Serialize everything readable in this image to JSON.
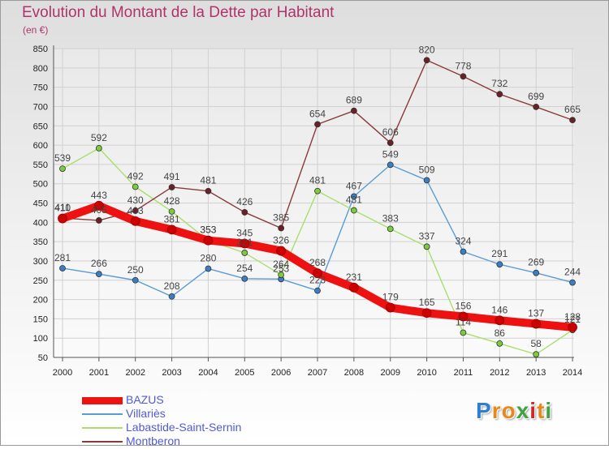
{
  "title": "Evolution du Montant de la Dette par Habitant",
  "unit_label": "(en €)",
  "logo": {
    "letters": [
      "P",
      "r",
      "o",
      "x",
      "i",
      "t",
      "i"
    ],
    "colors": [
      "#2d7fd4",
      "#e8871c",
      "#e8871c",
      "#3fa33f",
      "#cc2a2a",
      "#e8871c",
      "#3fa33f"
    ]
  },
  "chart_data": {
    "type": "line",
    "title": "Evolution du Montant de la Dette par Habitant",
    "ylabel": "(en €)",
    "xlabel": "",
    "categories": [
      "2000",
      "2001",
      "2002",
      "2003",
      "2004",
      "2005",
      "2006",
      "2007",
      "2008",
      "2009",
      "2010",
      "2011",
      "2012",
      "2013",
      "2014"
    ],
    "ylim": [
      50,
      850
    ],
    "yticks": [
      50,
      100,
      150,
      200,
      250,
      300,
      350,
      400,
      450,
      500,
      550,
      600,
      650,
      700,
      750,
      800,
      850
    ],
    "grid": true,
    "legend_position": "bottom-left",
    "series": [
      {
        "name": "Villariès",
        "color": "#5b9bd5",
        "dot": "#3a7fc4",
        "values": [
          281,
          266,
          250,
          208,
          280,
          254,
          253,
          223,
          467,
          549,
          509,
          324,
          291,
          269,
          244
        ]
      },
      {
        "name": "Labastide-Saint-Sernin",
        "color": "#a9df6f",
        "dot": "#7ccc3c",
        "values": [
          539,
          592,
          492,
          428,
          353,
          321,
          264,
          481,
          431,
          383,
          337,
          114,
          86,
          58,
          121
        ]
      },
      {
        "name": "Montberon",
        "color": "#8b3a3a",
        "dot": "#6b1f26",
        "values": [
          411,
          405,
          430,
          491,
          481,
          426,
          385,
          654,
          689,
          606,
          820,
          778,
          732,
          699,
          665
        ]
      },
      {
        "name": "BAZUS",
        "color": "#ee1111",
        "dot": "#cc0000",
        "values": [
          410,
          443,
          403,
          381,
          353,
          345,
          326,
          268,
          231,
          179,
          165,
          156,
          146,
          137,
          128
        ]
      }
    ],
    "legend_order": [
      "BAZUS",
      "Villariès",
      "Labastide-Saint-Sernin",
      "Montberon"
    ]
  }
}
